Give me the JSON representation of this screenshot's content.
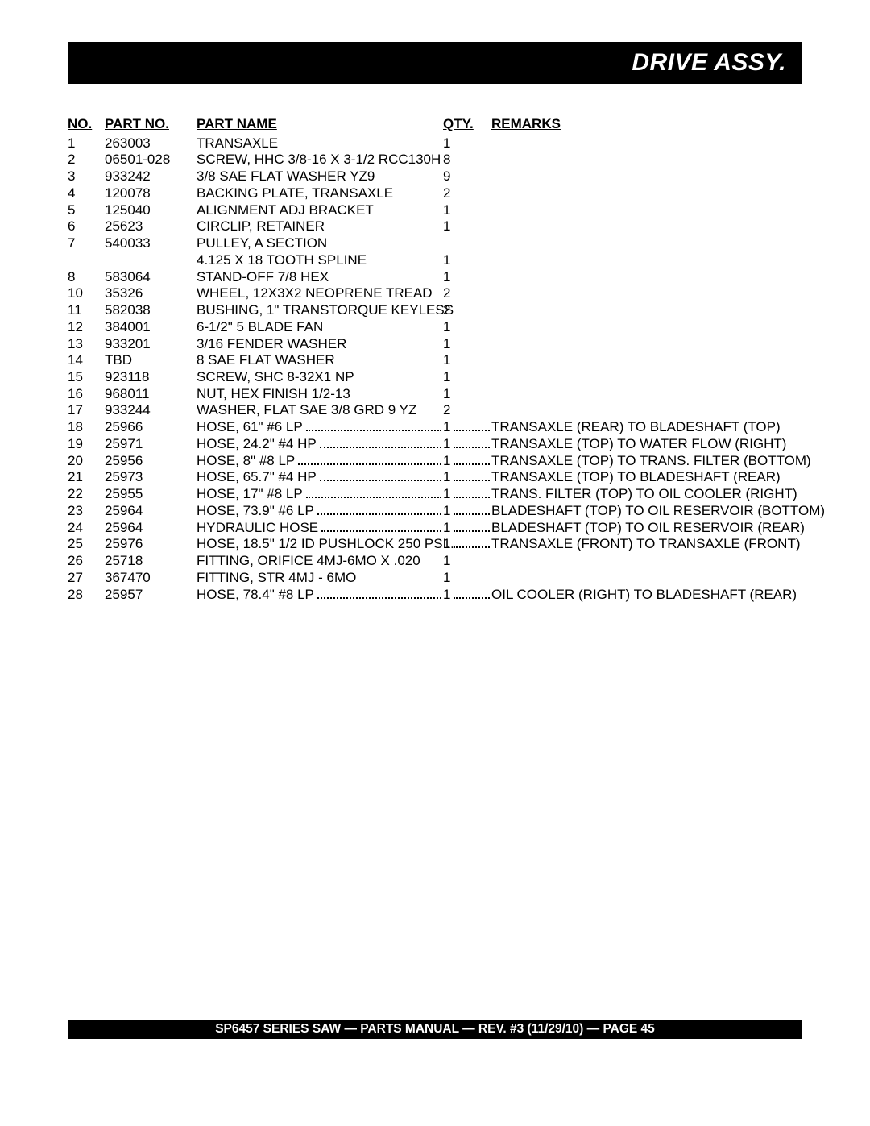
{
  "header": {
    "title": "DRIVE ASSY."
  },
  "table": {
    "columns": {
      "no": "NO.",
      "part_no": "PART NO.",
      "part_name": "PART NAME",
      "qty": "QTY.",
      "remarks": "REMARKS"
    },
    "rows": [
      {
        "no": "1",
        "part_no": "263003",
        "part_name": "TRANSAXLE",
        "qty": "1",
        "remarks": "",
        "dotted": false
      },
      {
        "no": "2",
        "part_no": "06501-028",
        "part_name": "SCREW, HHC 3/8-16 X 3-1/2 RCC130H",
        "qty": "8",
        "remarks": "",
        "dotted": false
      },
      {
        "no": "3",
        "part_no": "933242",
        "part_name": "3/8 SAE FLAT WASHER YZ9",
        "qty": "9",
        "remarks": "",
        "dotted": false
      },
      {
        "no": "4",
        "part_no": "120078",
        "part_name": "BACKING PLATE, TRANSAXLE",
        "qty": "2",
        "remarks": "",
        "dotted": false
      },
      {
        "no": "5",
        "part_no": "125040",
        "part_name": "ALIGNMENT ADJ BRACKET",
        "qty": "1",
        "remarks": "",
        "dotted": false
      },
      {
        "no": "6",
        "part_no": "25623",
        "part_name": "CIRCLIP, RETAINER",
        "qty": "1",
        "remarks": "",
        "dotted": false
      },
      {
        "no": "7",
        "part_no": "540033",
        "part_name": "PULLEY, A SECTION",
        "qty": "",
        "remarks": "",
        "dotted": false
      },
      {
        "no": "",
        "part_no": "",
        "part_name": "4.125 X 18 TOOTH SPLINE",
        "qty": "1",
        "remarks": "",
        "dotted": false
      },
      {
        "no": "8",
        "part_no": "583064",
        "part_name": "STAND-OFF 7/8 HEX",
        "qty": "1",
        "remarks": "",
        "dotted": false
      },
      {
        "no": "10",
        "part_no": "35326",
        "part_name": "WHEEL, 12X3X2 NEOPRENE TREAD",
        "qty": "2",
        "remarks": "",
        "dotted": false
      },
      {
        "no": "11",
        "part_no": "582038",
        "part_name": "BUSHING, 1\" TRANSTORQUE KEYLESS",
        "qty": "2",
        "remarks": "",
        "dotted": false
      },
      {
        "no": "12",
        "part_no": "384001",
        "part_name": "6-1/2\" 5 BLADE FAN",
        "qty": "1",
        "remarks": "",
        "dotted": false
      },
      {
        "no": "13",
        "part_no": "933201",
        "part_name": "3/16 FENDER WASHER",
        "qty": "1",
        "remarks": "",
        "dotted": false
      },
      {
        "no": "14",
        "part_no": "TBD",
        "part_name": "8 SAE FLAT WASHER",
        "qty": "1",
        "remarks": "",
        "dotted": false
      },
      {
        "no": "15",
        "part_no": "923118",
        "part_name": "SCREW, SHC 8-32X1 NP",
        "qty": "1",
        "remarks": "",
        "dotted": false
      },
      {
        "no": "16",
        "part_no": "968011",
        "part_name": "NUT, HEX FINISH 1/2-13",
        "qty": "1",
        "remarks": "",
        "dotted": false
      },
      {
        "no": "17",
        "part_no": "933244",
        "part_name": "WASHER, FLAT SAE 3/8 GRD 9 YZ",
        "qty": "2",
        "remarks": "",
        "dotted": false
      },
      {
        "no": "18",
        "part_no": "25966",
        "part_name": "HOSE, 61\" #6 LP",
        "qty": "1",
        "remarks": "TRANSAXLE (REAR) TO BLADESHAFT (TOP)",
        "dotted": true
      },
      {
        "no": "19",
        "part_no": "25971",
        "part_name": "HOSE, 24.2\" #4 HP",
        "qty": "1",
        "remarks": "TRANSAXLE (TOP) TO WATER FLOW (RIGHT)",
        "dotted": true
      },
      {
        "no": "20",
        "part_no": "25956",
        "part_name": "HOSE, 8\" #8 LP",
        "qty": "1",
        "remarks": "TRANSAXLE (TOP) TO TRANS. FILTER (BOTTOM)",
        "dotted": true
      },
      {
        "no": "21",
        "part_no": "25973",
        "part_name": "HOSE, 65.7\" #4 HP",
        "qty": "1",
        "remarks": "TRANSAXLE (TOP) TO BLADESHAFT (REAR)",
        "dotted": true
      },
      {
        "no": "22",
        "part_no": "25955",
        "part_name": "HOSE, 17\" #8 LP",
        "qty": "1",
        "remarks": "TRANS. FILTER (TOP) TO OIL COOLER (RIGHT)",
        "dotted": true
      },
      {
        "no": "23",
        "part_no": "25964",
        "part_name": "HOSE, 73.9\" #6 LP",
        "qty": "1",
        "remarks": "BLADESHAFT (TOP) TO OIL RESERVOIR (BOTTOM)",
        "dotted": true
      },
      {
        "no": "24",
        "part_no": "25964",
        "part_name": "HYDRAULIC HOSE",
        "qty": "1",
        "remarks": "BLADESHAFT (TOP) TO OIL RESERVOIR (REAR)",
        "dotted": true
      },
      {
        "no": "25",
        "part_no": "25976",
        "part_name": "HOSE, 18.5\" 1/2 ID PUSHLOCK 250 PSI",
        "qty": "1",
        "remarks": "TRANSAXLE (FRONT) TO TRANSAXLE (FRONT)",
        "dotted": true,
        "tight": true
      },
      {
        "no": "26",
        "part_no": "25718",
        "part_name": "FITTING, ORIFICE 4MJ-6MO X .020",
        "qty": "1",
        "remarks": "",
        "dotted": false
      },
      {
        "no": "27",
        "part_no": "367470",
        "part_name": "FITTING, STR 4MJ - 6MO",
        "qty": "1",
        "remarks": "",
        "dotted": false
      },
      {
        "no": "28",
        "part_no": "25957",
        "part_name": "HOSE, 78.4\" #8 LP",
        "qty": "1",
        "remarks": "OIL COOLER (RIGHT) TO BLADESHAFT (REAR)",
        "dotted": true,
        "gap": true
      }
    ]
  },
  "footer": {
    "text": "SP6457 SERIES SAW —  PARTS MANUAL — REV. #3  (11/29/10) — PAGE 45"
  }
}
